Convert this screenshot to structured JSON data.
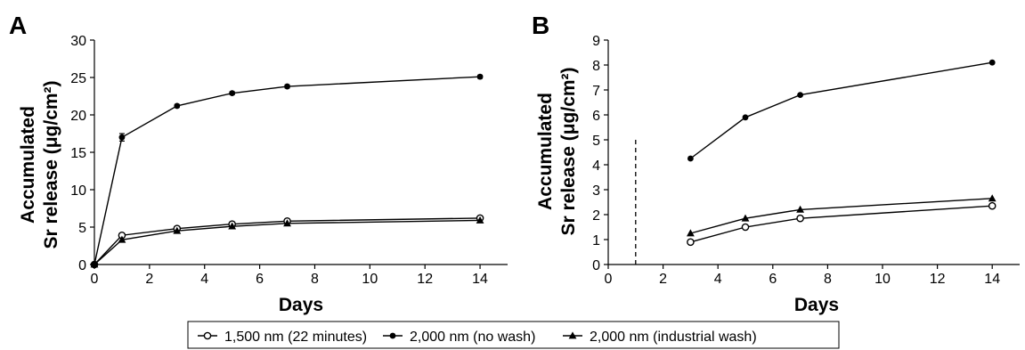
{
  "chart_data": [
    {
      "panel": "A",
      "type": "line",
      "xlabel": "Days",
      "ylabel_line1": "Accumulated",
      "ylabel_line2": "Sr release (μg/cm²)",
      "xlim": [
        0,
        15
      ],
      "ylim": [
        0,
        30
      ],
      "xticks": [
        "0",
        "2",
        "4",
        "6",
        "8",
        "10",
        "12",
        "14"
      ],
      "yticks": [
        "0",
        "5",
        "10",
        "15",
        "20",
        "25",
        "30"
      ],
      "grid": false,
      "series": [
        {
          "name": "1,500 nm (22 minutes)",
          "marker": "open-circle",
          "x": [
            0,
            1,
            3,
            5,
            7,
            14
          ],
          "y": [
            0,
            3.9,
            4.8,
            5.4,
            5.8,
            6.2
          ]
        },
        {
          "name": "2,000 nm (no wash)",
          "marker": "filled-circle",
          "x": [
            0,
            1,
            3,
            5,
            7,
            14
          ],
          "y": [
            0,
            17.0,
            21.2,
            22.9,
            23.8,
            25.1
          ],
          "error": [
            0,
            0.5,
            0.2,
            0.2,
            0.2,
            0.2
          ]
        },
        {
          "name": "2,000 nm (industrial wash)",
          "marker": "filled-triangle",
          "x": [
            0,
            1,
            3,
            5,
            7,
            14
          ],
          "y": [
            0,
            3.3,
            4.5,
            5.1,
            5.5,
            5.9
          ]
        }
      ]
    },
    {
      "panel": "B",
      "type": "line",
      "xlabel": "Days",
      "ylabel_line1": "Accumulated",
      "ylabel_line2": "Sr release (μg/cm²)",
      "xlim": [
        0,
        15
      ],
      "ylim": [
        0,
        9
      ],
      "xticks": [
        "0",
        "2",
        "4",
        "6",
        "8",
        "10",
        "12",
        "14"
      ],
      "yticks": [
        "0",
        "1",
        "2",
        "3",
        "4",
        "5",
        "6",
        "7",
        "8",
        "9"
      ],
      "grid": false,
      "dashed_vline": {
        "x": 1,
        "y_top": 5
      },
      "series": [
        {
          "name": "1,500 nm (22 minutes)",
          "marker": "open-circle",
          "x": [
            3,
            5,
            7,
            14
          ],
          "y": [
            0.9,
            1.5,
            1.85,
            2.35
          ]
        },
        {
          "name": "2,000 nm (no wash)",
          "marker": "filled-circle",
          "x": [
            3,
            5,
            7,
            14
          ],
          "y": [
            4.25,
            5.9,
            6.8,
            8.1
          ]
        },
        {
          "name": "2,000 nm (industrial wash)",
          "marker": "filled-triangle",
          "x": [
            3,
            5,
            7,
            14
          ],
          "y": [
            1.25,
            1.85,
            2.2,
            2.65
          ]
        }
      ]
    }
  ],
  "legend": {
    "placement": "bottom-center",
    "items": [
      {
        "label": "1,500 nm (22 minutes)",
        "marker": "open-circle"
      },
      {
        "label": "2,000 nm (no wash)",
        "marker": "filled-circle"
      },
      {
        "label": "2,000 nm (industrial wash)",
        "marker": "filled-triangle"
      }
    ]
  }
}
